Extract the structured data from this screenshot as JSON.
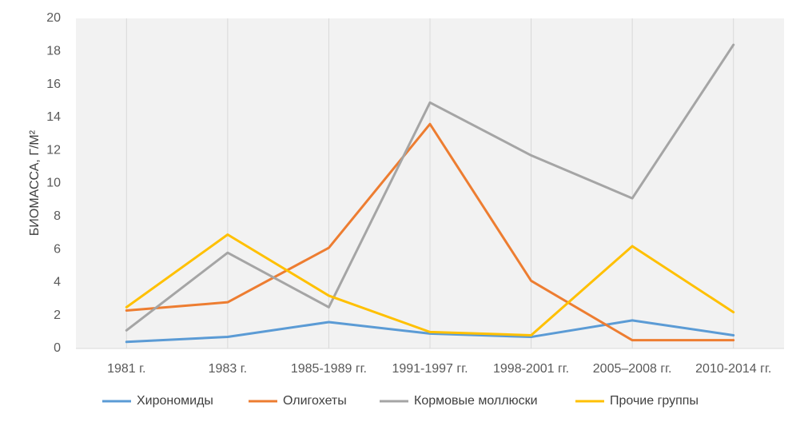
{
  "chart_data": {
    "type": "line",
    "title": "",
    "xlabel": "",
    "ylabel": "БИОМАССА, Г/М²",
    "ylim": [
      0,
      20
    ],
    "yticks": [
      "0",
      "2",
      "4",
      "6",
      "8",
      "10",
      "12",
      "14",
      "16",
      "18",
      "20"
    ],
    "categories": [
      "1981 г.",
      "1983 г.",
      "1985-1989 гг.",
      "1991-1997 гг.",
      "1998-2001 гг.",
      "2005–2008 гг.",
      "2010-2014 гг."
    ],
    "grid": "vertical",
    "legend_position": "bottom",
    "series": [
      {
        "name": "Хирономиды",
        "color": "#5B9BD5",
        "values": [
          0.4,
          0.7,
          1.6,
          0.9,
          0.7,
          1.7,
          0.8
        ]
      },
      {
        "name": "Олигохеты",
        "color": "#ED7D31",
        "values": [
          2.3,
          2.8,
          6.1,
          13.6,
          4.1,
          0.5,
          0.5
        ]
      },
      {
        "name": "Кормовые моллюски",
        "color": "#A5A5A5",
        "values": [
          1.1,
          5.8,
          2.5,
          14.9,
          11.7,
          9.1,
          18.4
        ]
      },
      {
        "name": "Прочие группы",
        "color": "#FFC000",
        "values": [
          2.5,
          6.9,
          3.2,
          1.0,
          0.8,
          6.2,
          2.2
        ]
      }
    ]
  }
}
